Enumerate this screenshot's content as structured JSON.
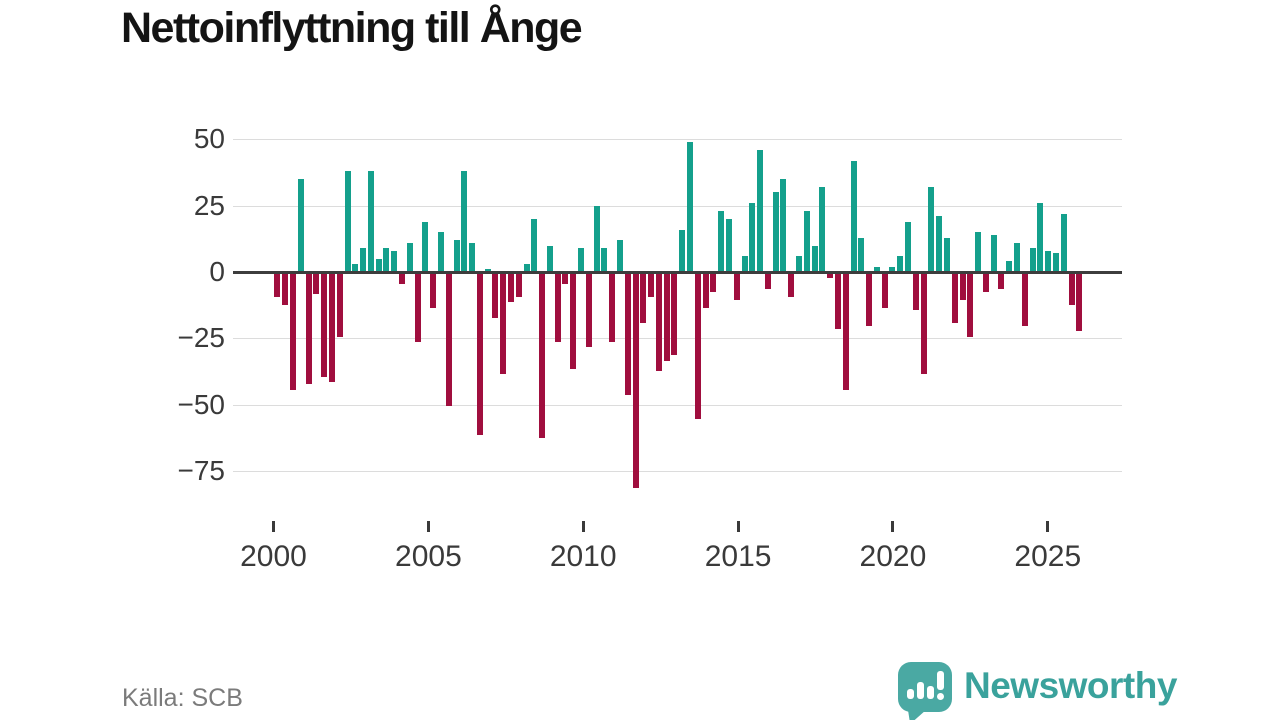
{
  "title": "Nettoinflyttning till Ånge",
  "source": "Källa: SCB",
  "brand": {
    "name": "Newsworthy"
  },
  "colors": {
    "positive_bar": "#14a08c",
    "negative_bar": "#a00e3e",
    "gridline": "#dcdcdc",
    "zero_line": "#3d3d3d",
    "axis_text": "#3a3a3a",
    "source_text": "#7b7b7b",
    "brand_teal": "#4aa9a3"
  },
  "chart_data": {
    "type": "bar",
    "title": "Nettoinflyttning till Ånge",
    "frequency": "quarterly",
    "start_year": 2000,
    "periods": 104,
    "x_tick_labels": [
      "2000",
      "2005",
      "2010",
      "2015",
      "2020",
      "2025"
    ],
    "y_tick_values": [
      50,
      25,
      0,
      -25,
      -50,
      -75
    ],
    "y_tick_labels": [
      "50",
      "25",
      "0",
      "−25",
      "−50",
      "−75"
    ],
    "ylim": [
      -85,
      55
    ],
    "grid": true,
    "legend": false,
    "values": [
      -9,
      -12,
      -44,
      35,
      -42,
      -8,
      -39,
      -41,
      -24,
      38,
      3,
      9,
      38,
      5,
      9,
      8,
      -4,
      11,
      -26,
      19,
      -13,
      15,
      -50,
      12,
      38,
      11,
      -61,
      1,
      -17,
      -38,
      -11,
      -9,
      3,
      20,
      -62,
      10,
      -26,
      -4,
      -36,
      9,
      -28,
      25,
      9,
      -26,
      12,
      -46,
      -81,
      -19,
      -9,
      -37,
      -33,
      -31,
      16,
      49,
      -55,
      -13,
      -7,
      23,
      20,
      -10,
      6,
      26,
      46,
      -6,
      30,
      35,
      -9,
      6,
      23,
      10,
      32,
      -2,
      -21,
      -44,
      42,
      13,
      -20,
      2,
      -13,
      2,
      6,
      19,
      -14,
      -38,
      32,
      21,
      13,
      -19,
      -10,
      -24,
      15,
      -7,
      14,
      -6,
      4,
      11,
      -20,
      9,
      26,
      8,
      7,
      22,
      -12,
      -22
    ]
  }
}
